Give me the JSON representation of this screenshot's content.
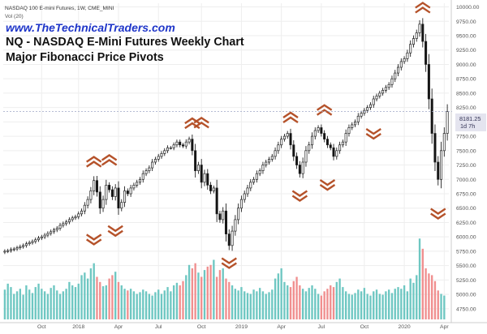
{
  "header": {
    "symbol": "NASDAQ 100 E-mini Futures, 1W, CME_MINI",
    "volume_label": "Vol (20)",
    "website": "www.TheTechnicalTraders.com",
    "title": "NQ - NASDAQ E-Mini Futures Weekly Chart",
    "subtitle": "Major Fibonacci Price Pivots"
  },
  "price_tag": {
    "value": "8181.25",
    "countdown": "1d 7h",
    "bg": "#e4e4ef",
    "fg": "#333355"
  },
  "colors": {
    "up": "#ffffff",
    "down": "#111111",
    "wick": "#222222",
    "volume_up": "#6ec7c2",
    "volume_down": "#f08f8f",
    "pivot": "#b5522a",
    "website": "#1f36c9",
    "grid": "#eeeeee"
  },
  "chart_data": {
    "type": "candlestick",
    "title": "NQ - NASDAQ E-Mini Futures Weekly Chart",
    "subtitle": "Major Fibonacci Price Pivots",
    "timeframe": "1W",
    "ylim": [
      4550,
      10050
    ],
    "y_ticks": [
      4750,
      5000,
      5250,
      5500,
      5750,
      6000,
      6250,
      6500,
      6750,
      7000,
      7250,
      7500,
      7750,
      8000,
      8250,
      8500,
      8750,
      9000,
      9250,
      9500,
      9750,
      10000
    ],
    "x_ticks": [
      {
        "label": "Oct",
        "week": 12
      },
      {
        "label": "2018",
        "week": 24
      },
      {
        "label": "Apr",
        "week": 37
      },
      {
        "label": "Jul",
        "week": 50
      },
      {
        "label": "Oct",
        "week": 64
      },
      {
        "label": "2019",
        "week": 77
      },
      {
        "label": "Apr",
        "week": 90
      },
      {
        "label": "Jul",
        "week": 103
      },
      {
        "label": "Oct",
        "week": 117
      },
      {
        "label": "2020",
        "week": 130
      },
      {
        "label": "Apr",
        "week": 143
      }
    ],
    "grid": true,
    "close_price": 8181.25,
    "weekly_close": [
      5750,
      5760,
      5780,
      5790,
      5810,
      5830,
      5850,
      5880,
      5900,
      5920,
      5950,
      5980,
      6000,
      6030,
      6060,
      6090,
      6120,
      6150,
      6200,
      6230,
      6260,
      6300,
      6330,
      6350,
      6400,
      6450,
      6550,
      6650,
      6800,
      6980,
      6780,
      6500,
      6650,
      6900,
      6820,
      6700,
      6850,
      6500,
      6600,
      6800,
      6750,
      6850,
      6900,
      6950,
      7000,
      7100,
      7150,
      7200,
      7300,
      7350,
      7400,
      7450,
      7500,
      7550,
      7550,
      7600,
      7650,
      7600,
      7580,
      7650,
      7700,
      7500,
      7150,
      7250,
      6950,
      7100,
      6900,
      6800,
      6850,
      6400,
      6300,
      6450,
      6050,
      5850,
      6100,
      6300,
      6500,
      6650,
      6750,
      6850,
      6950,
      7000,
      7100,
      7150,
      7250,
      7300,
      7350,
      7400,
      7500,
      7600,
      7700,
      7750,
      7800,
      7600,
      7400,
      7250,
      7100,
      7300,
      7500,
      7600,
      7750,
      7850,
      7900,
      7800,
      7700,
      7600,
      7550,
      7400,
      7500,
      7600,
      7650,
      7800,
      7900,
      7950,
      8000,
      8100,
      8150,
      8200,
      8250,
      8300,
      8400,
      8450,
      8500,
      8550,
      8600,
      8650,
      8750,
      8850,
      8950,
      9050,
      9100,
      9200,
      9350,
      9450,
      9550,
      9700,
      9400,
      9000,
      8400,
      7800,
      7300,
      7000,
      7500,
      7800,
      8181.25
    ],
    "weekly_volume": [
      35,
      42,
      38,
      30,
      33,
      36,
      29,
      40,
      35,
      31,
      38,
      42,
      36,
      33,
      30,
      37,
      40,
      34,
      30,
      33,
      36,
      44,
      40,
      38,
      42,
      52,
      55,
      48,
      60,
      66,
      50,
      44,
      39,
      40,
      48,
      52,
      56,
      44,
      40,
      36,
      34,
      36,
      33,
      30,
      32,
      35,
      33,
      30,
      28,
      32,
      35,
      30,
      34,
      38,
      33,
      40,
      43,
      40,
      45,
      52,
      64,
      60,
      66,
      55,
      50,
      58,
      62,
      64,
      70,
      50,
      58,
      60,
      48,
      44,
      40,
      36,
      34,
      38,
      33,
      31,
      30,
      35,
      33,
      37,
      33,
      30,
      32,
      35,
      48,
      54,
      60,
      44,
      40,
      38,
      45,
      50,
      40,
      36,
      33,
      37,
      40,
      36,
      30,
      28,
      33,
      36,
      40,
      38,
      44,
      48,
      38,
      33,
      30,
      29,
      31,
      35,
      33,
      37,
      30,
      28,
      33,
      35,
      30,
      29,
      33,
      35,
      31,
      36,
      38,
      36,
      40,
      33,
      48,
      43,
      52,
      95,
      83,
      60,
      54,
      52,
      45,
      34,
      30,
      28
    ],
    "pivots": [
      {
        "type": "high",
        "week": 29,
        "price": 7080
      },
      {
        "type": "high",
        "week": 34,
        "price": 7110
      },
      {
        "type": "low",
        "week": 29,
        "price": 6180
      },
      {
        "type": "low",
        "week": 36,
        "price": 6330
      },
      {
        "type": "high",
        "week": 61,
        "price": 7750
      },
      {
        "type": "high",
        "week": 64,
        "price": 7760
      },
      {
        "type": "low",
        "week": 73,
        "price": 5770
      },
      {
        "type": "high",
        "week": 93,
        "price": 7850
      },
      {
        "type": "low",
        "week": 96,
        "price": 6940
      },
      {
        "type": "high",
        "week": 104,
        "price": 7980
      },
      {
        "type": "low",
        "week": 105,
        "price": 7130
      },
      {
        "type": "low",
        "week": 120,
        "price": 8020
      },
      {
        "type": "high",
        "week": 136,
        "price": 9760
      },
      {
        "type": "low",
        "week": 141,
        "price": 6630
      }
    ]
  }
}
